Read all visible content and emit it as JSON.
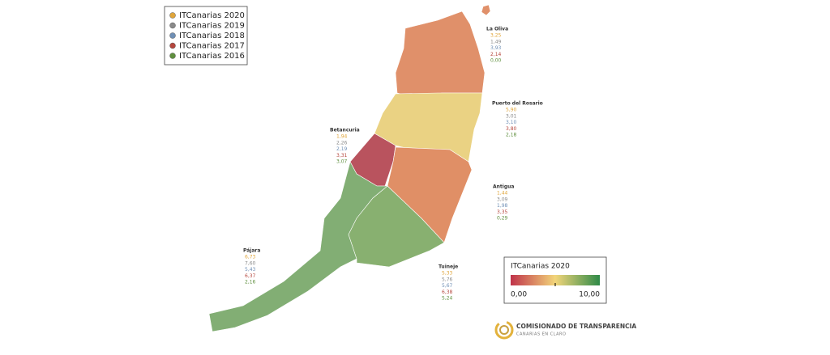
{
  "legend": {
    "items": [
      "ITCanarias 2020",
      "ITCanarias 2019",
      "ITCanarias 2018",
      "ITCanarias 2017",
      "ITCanarias 2016"
    ]
  },
  "municipalities": [
    {
      "name": "La Oliva",
      "values": [
        "3,25",
        "1,49",
        "3,93",
        "2,14",
        "0,00"
      ]
    },
    {
      "name": "Puerto del Rosario",
      "values": [
        "5,90",
        "3,01",
        "3,10",
        "3,80",
        "2,18"
      ]
    },
    {
      "name": "Betancuria",
      "values": [
        "1,94",
        "2,26",
        "2,19",
        "3,31",
        "3,07"
      ]
    },
    {
      "name": "Antigua",
      "values": [
        "1,44",
        "3,09",
        "1,98",
        "3,35",
        "0,29"
      ]
    },
    {
      "name": "Pájara",
      "values": [
        "6,73",
        "7,60",
        "5,43",
        "6,37",
        "2,16"
      ]
    },
    {
      "name": "Tuineje",
      "values": [
        "5,33",
        "5,76",
        "5,67",
        "6,38",
        "5,24"
      ]
    }
  ],
  "colorbar": {
    "title": "ITCanarias 2020",
    "min_label": "0,00",
    "max_label": "10,00"
  },
  "logo": {
    "title": "COMISIONADO DE TRANSPARENCIA",
    "subtitle": "CANARIAS EN CLARO"
  }
}
